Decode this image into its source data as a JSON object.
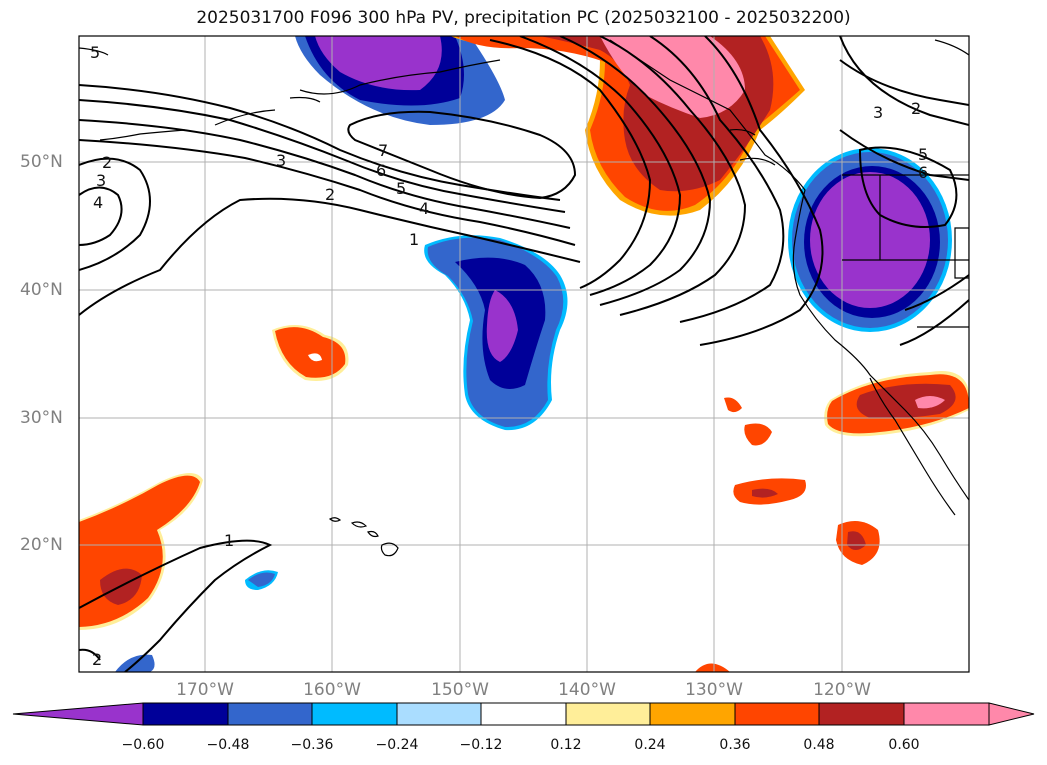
{
  "title": "2025031700 F096 300 hPa PV, precipitation PC (2025032100 - 2025032200)",
  "lat_labels": [
    "50°N",
    "40°N",
    "30°N",
    "20°N"
  ],
  "lon_labels": [
    "170°W",
    "160°W",
    "150°W",
    "140°W",
    "130°W",
    "120°W"
  ],
  "colorbar": {
    "colors": [
      "#9933cc",
      "#000099",
      "#3366cc",
      "#00bbff",
      "#aaddff",
      "#ffffff",
      "#ffee99",
      "#ffa500",
      "#ff4500",
      "#b22222",
      "#ff88aa"
    ],
    "ticks": [
      "−0.60",
      "−0.48",
      "−0.36",
      "−0.24",
      "−0.12",
      "0.12",
      "0.24",
      "0.36",
      "0.48",
      "0.60"
    ]
  },
  "contour_labels": [
    "2",
    "3",
    "4",
    "5",
    "2",
    "3",
    "7",
    "6",
    "5",
    "4",
    "2",
    "1",
    "3",
    "2",
    "5",
    "6",
    "1",
    "2"
  ]
}
